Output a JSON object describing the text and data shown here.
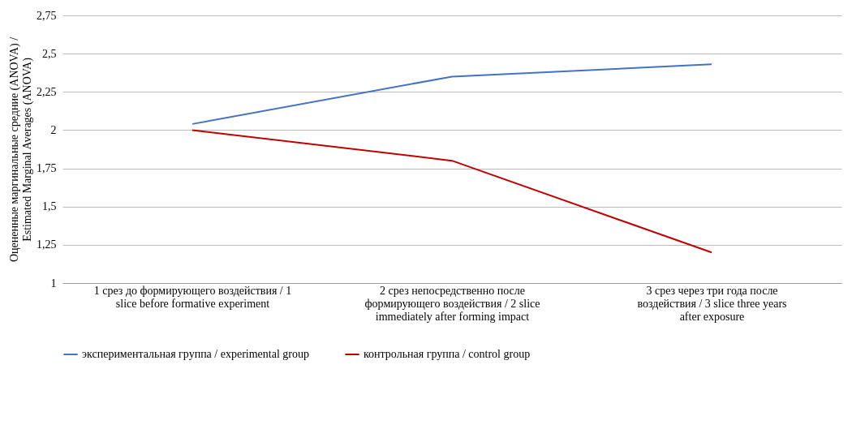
{
  "chart_data": {
    "type": "line",
    "ylabel": "Оцененные маргинальные средние (ANOVA) / Estimated Marginal Averages (ANOVA)",
    "categories": [
      "1 срез до формирующего воздействия / 1 slice before formative experiment",
      "2 срез непосредственно после формирующего воздействия / 2 slice immediately after forming impact",
      "3 срез через три года после воздействия / 3 slice three years after exposure"
    ],
    "series": [
      {
        "name": "экспериментальная группа / experimental group",
        "color": "#4472c4",
        "values": [
          2.04,
          2.35,
          2.43
        ]
      },
      {
        "name": "контрольная группа / control group",
        "color": "#c00000",
        "values": [
          2.0,
          1.8,
          1.2
        ]
      }
    ],
    "ylim": [
      1,
      2.75
    ],
    "yticks": [
      1,
      {
        "value": 1.25,
        "label": "1,25"
      },
      {
        "value": 1.5,
        "label": "1,5"
      },
      {
        "value": 1.75,
        "label": "1,75"
      },
      2,
      {
        "value": 2.25,
        "label": "2,25"
      },
      {
        "value": 2.5,
        "label": "2,5"
      },
      {
        "value": 2.75,
        "label": "2,75"
      }
    ],
    "grid": "y",
    "legend": "bottom",
    "marker": "none",
    "line_style": "solid"
  }
}
